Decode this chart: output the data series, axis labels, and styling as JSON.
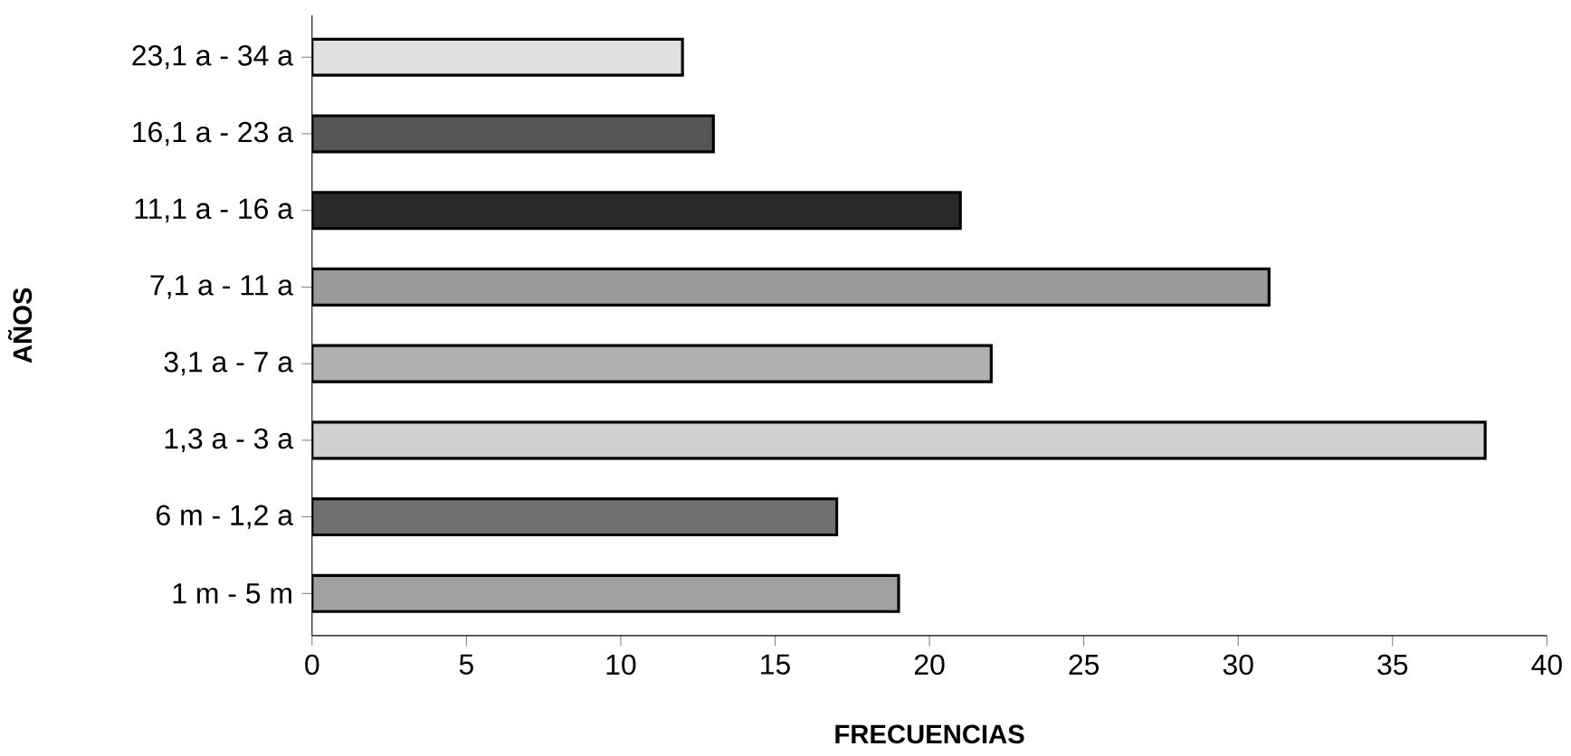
{
  "chart_data": {
    "type": "bar",
    "orientation": "horizontal",
    "xlabel": "FRECUENCIAS",
    "ylabel": "AÑOS",
    "categories": [
      "23,1 a - 34 a",
      "16,1 a - 23 a",
      "11,1 a - 16 a",
      "7,1 a - 11 a",
      "3,1 a - 7 a",
      "1,3 a - 3 a",
      "6 m - 1,2 a",
      "1 m - 5 m"
    ],
    "values": [
      12,
      13,
      21,
      31,
      22,
      38,
      17,
      19
    ],
    "colors": [
      "#e0e0e0",
      "#555555",
      "#2a2a2a",
      "#9a9a9a",
      "#b0b0b0",
      "#d0d0d0",
      "#707070",
      "#a0a0a0"
    ],
    "xlim": [
      0,
      40
    ],
    "xticks": [
      0,
      5,
      10,
      15,
      20,
      25,
      30,
      35,
      40
    ]
  }
}
